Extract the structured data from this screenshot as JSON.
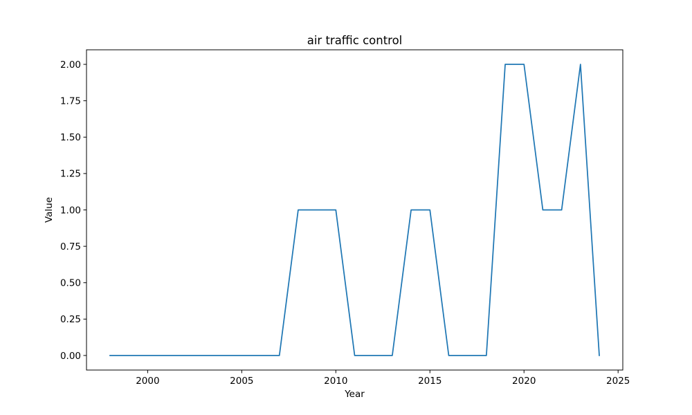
{
  "chart_data": {
    "type": "line",
    "title": "air traffic control",
    "xlabel": "Year",
    "ylabel": "Value",
    "xlim": [
      1996.75,
      2025.25
    ],
    "ylim": [
      -0.1,
      2.1
    ],
    "xticks": [
      2000,
      2005,
      2010,
      2015,
      2020,
      2025
    ],
    "yticks": [
      0.0,
      0.25,
      0.5,
      0.75,
      1.0,
      1.25,
      1.5,
      1.75,
      2.0
    ],
    "ytick_labels": [
      "0.00",
      "0.25",
      "0.50",
      "0.75",
      "1.00",
      "1.25",
      "1.50",
      "1.75",
      "2.00"
    ],
    "grid": false,
    "series": [
      {
        "color": "#1f77b4",
        "x": [
          1998,
          1999,
          2000,
          2001,
          2002,
          2003,
          2004,
          2005,
          2006,
          2007,
          2008,
          2009,
          2010,
          2011,
          2012,
          2013,
          2014,
          2015,
          2016,
          2017,
          2018,
          2019,
          2020,
          2021,
          2022,
          2023,
          2024
        ],
        "y": [
          0,
          0,
          0,
          0,
          0,
          0,
          0,
          0,
          0,
          0,
          1,
          1,
          1,
          0,
          0,
          0,
          1,
          1,
          0,
          0,
          0,
          2,
          2,
          1,
          1,
          2,
          0
        ]
      }
    ]
  }
}
